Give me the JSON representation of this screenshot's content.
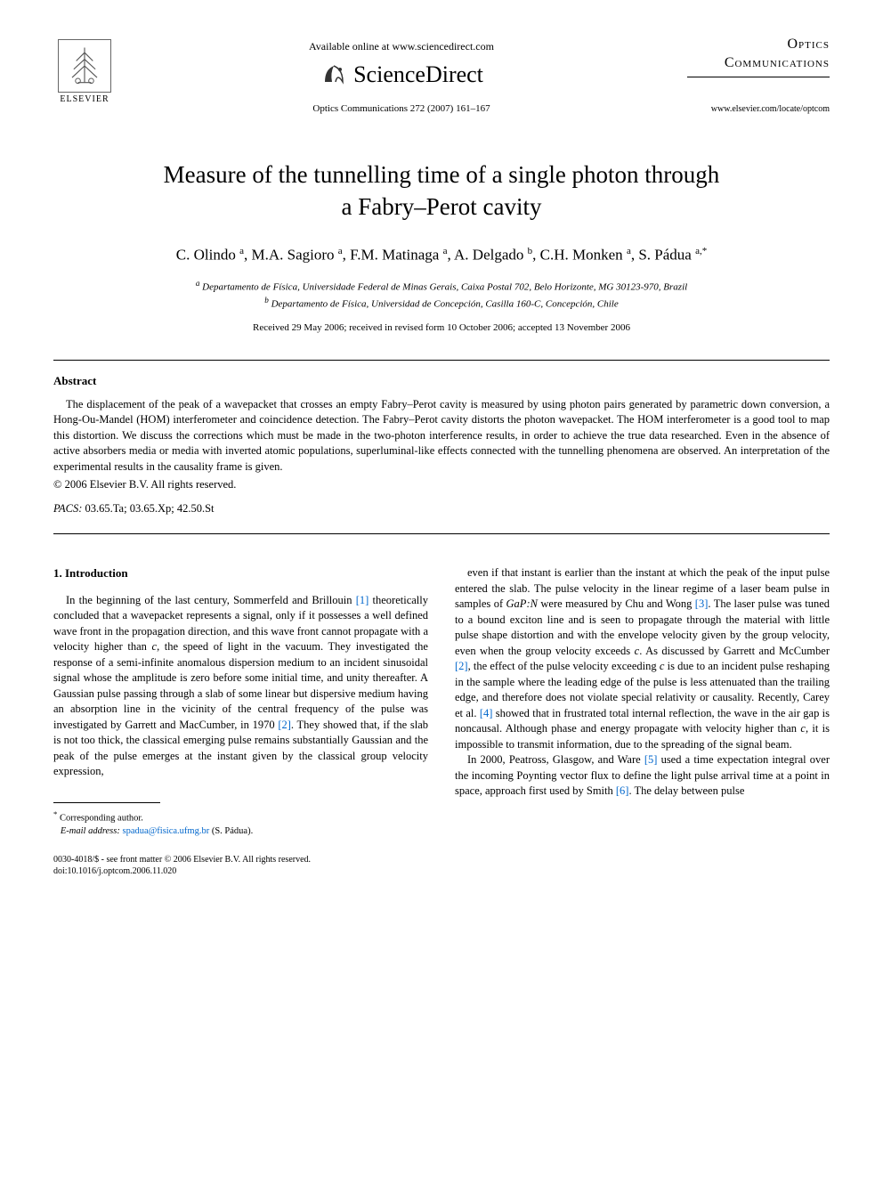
{
  "header": {
    "available_online": "Available online at www.sciencedirect.com",
    "sciencedirect": "ScienceDirect",
    "elsevier": "ELSEVIER",
    "journal_ref": "Optics Communications 272 (2007) 161–167",
    "journal_name_line1": "Optics",
    "journal_name_line2": "Communications",
    "journal_url": "www.elsevier.com/locate/optcom"
  },
  "title_line1": "Measure of the tunnelling time of a single photon through",
  "title_line2": "a Fabry–Perot cavity",
  "authors_html": "C. Olindo <sup>a</sup>, M.A. Sagioro <sup>a</sup>, F.M. Matinaga <sup>a</sup>, A. Delgado <sup>b</sup>, C.H. Monken <sup>a</sup>, S. Pádua <sup>a,*</sup>",
  "affiliations": {
    "a": "Departamento de Física, Universidade Federal de Minas Gerais, Caixa Postal 702, Belo Horizonte, MG 30123-970, Brazil",
    "b": "Departamento de Física, Universidad de Concepción, Casilla 160-C, Concepción, Chile"
  },
  "dates": "Received 29 May 2006; received in revised form 10 October 2006; accepted 13 November 2006",
  "abstract": {
    "heading": "Abstract",
    "text": "The displacement of the peak of a wavepacket that crosses an empty Fabry–Perot cavity is measured by using photon pairs generated by parametric down conversion, a Hong-Ou-Mandel (HOM) interferometer and coincidence detection. The Fabry–Perot cavity distorts the photon wavepacket. The HOM interferometer is a good tool to map this distortion. We discuss the corrections which must be made in the two-photon interference results, in order to achieve the true data researched. Even in the absence of active absorbers media or media with inverted atomic populations, superluminal-like effects connected with the tunnelling phenomena are observed. An interpretation of the experimental results in the causality frame is given.",
    "copyright": "© 2006 Elsevier B.V. All rights reserved."
  },
  "pacs": {
    "label": "PACS:",
    "codes": "03.65.Ta; 03.65.Xp; 42.50.St"
  },
  "section1": {
    "heading": "1. Introduction",
    "col1": "In the beginning of the last century, Sommerfeld and Brillouin [1] theoretically concluded that a wavepacket represents a signal, only if it possesses a well defined wave front in the propagation direction, and this wave front cannot propagate with a velocity higher than c, the speed of light in the vacuum. They investigated the response of a semi-infinite anomalous dispersion medium to an incident sinusoidal signal whose the amplitude is zero before some initial time, and unity thereafter. A Gaussian pulse passing through a slab of some linear but dispersive medium having an absorption line in the vicinity of the central frequency of the pulse was investigated by Garrett and MacCumber, in 1970 [2]. They showed that, if the slab is not too thick, the classical emerging pulse remains substantially Gaussian and the peak of the pulse emerges at the instant given by the classical group velocity expression,",
    "col2_p1": "even if that instant is earlier than the instant at which the peak of the input pulse entered the slab. The pulse velocity in the linear regime of a laser beam pulse in samples of GaP:N were measured by Chu and Wong [3]. The laser pulse was tuned to a bound exciton line and is seen to propagate through the material with little pulse shape distortion and with the envelope velocity given by the group velocity, even when the group velocity exceeds c. As discussed by Garrett and McCumber [2], the effect of the pulse velocity exceeding c is due to an incident pulse reshaping in the sample where the leading edge of the pulse is less attenuated than the trailing edge, and therefore does not violate special relativity or causality. Recently, Carey et al. [4] showed that in frustrated total internal reflection, the wave in the air gap is noncausal. Although phase and energy propagate with velocity higher than c, it is impossible to transmit information, due to the spreading of the signal beam.",
    "col2_p2": "In 2000, Peatross, Glasgow, and Ware [5] used a time expectation integral over the incoming Poynting vector flux to define the light pulse arrival time at a point in space, approach first used by Smith [6]. The delay between pulse"
  },
  "footnote": {
    "corresponding": "Corresponding author.",
    "email_label": "E-mail address:",
    "email": "spadua@fisica.ufmg.br",
    "email_author": "(S. Pádua)."
  },
  "footer": {
    "line1": "0030-4018/$ - see front matter © 2006 Elsevier B.V. All rights reserved.",
    "line2": "doi:10.1016/j.optcom.2006.11.020"
  },
  "colors": {
    "link": "#0066cc",
    "text": "#000000",
    "bg": "#ffffff"
  }
}
